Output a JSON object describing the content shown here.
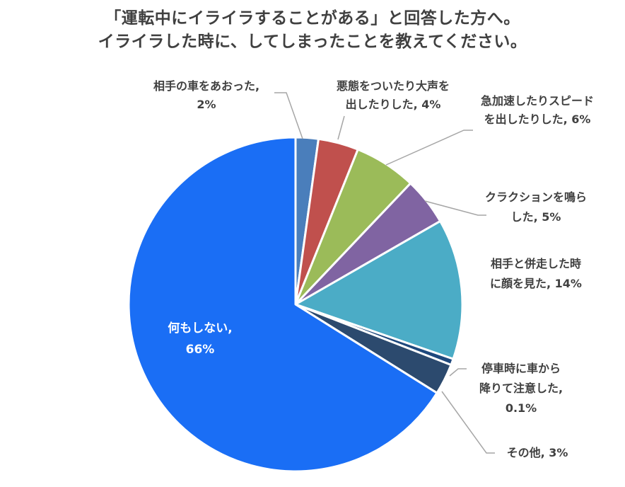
{
  "title": {
    "line1": "「運転中にイライラすることがある」と回答した方へ。",
    "line2": "イライラした時に、してしまったことを教えてください。"
  },
  "chart_data": {
    "type": "pie",
    "title": "「運転中にイライラすることがある」と回答した方へ。イライラした時に、してしまったことを教えてください。",
    "slices": [
      {
        "label": "相手の車をあおった",
        "value": 2,
        "display": "2%",
        "color": "#4a7ebb"
      },
      {
        "label": "悪態をついたり大声を出したりした",
        "value": 4,
        "display": "4%",
        "color": "#c0504d"
      },
      {
        "label": "急加速したりスピードを出したりした",
        "value": 6,
        "display": "6%",
        "color": "#9bbb59"
      },
      {
        "label": "クラクションを鳴らした",
        "value": 5,
        "display": "5%",
        "color": "#8064a2"
      },
      {
        "label": "相手と併走した時に顔を見た",
        "value": 14,
        "display": "14%",
        "color": "#4bacc6"
      },
      {
        "label": "停車時に車から降りて注意した",
        "value": 0.1,
        "display": "0.1%",
        "color": "#1f497d"
      },
      {
        "label": "その他",
        "value": 3,
        "display": "3%",
        "color": "#2c4a6e"
      },
      {
        "label": "何もしない",
        "value": 66,
        "display": "66%",
        "color": "#1a6ef5"
      }
    ],
    "labels": [
      {
        "lines": [
          "相手の車をあおった,",
          "2%"
        ]
      },
      {
        "lines": [
          "悪態をついたり大声を",
          "出したりした, 4%"
        ]
      },
      {
        "lines": [
          "急加速したりスピード",
          "を出したりした, 6%"
        ]
      },
      {
        "lines": [
          "クラクションを鳴ら",
          "した, 5%"
        ]
      },
      {
        "lines": [
          "相手と併走した時",
          "に顔を見た, 14%"
        ]
      },
      {
        "lines": [
          "停車時に車から",
          "降りて注意した,",
          "0.1%"
        ]
      },
      {
        "lines": [
          "その他, 3%"
        ]
      },
      {
        "lines": [
          "何もしない,",
          "66%"
        ]
      }
    ],
    "legend": "none",
    "start_angle_deg": 0,
    "direction": "clockwise"
  }
}
